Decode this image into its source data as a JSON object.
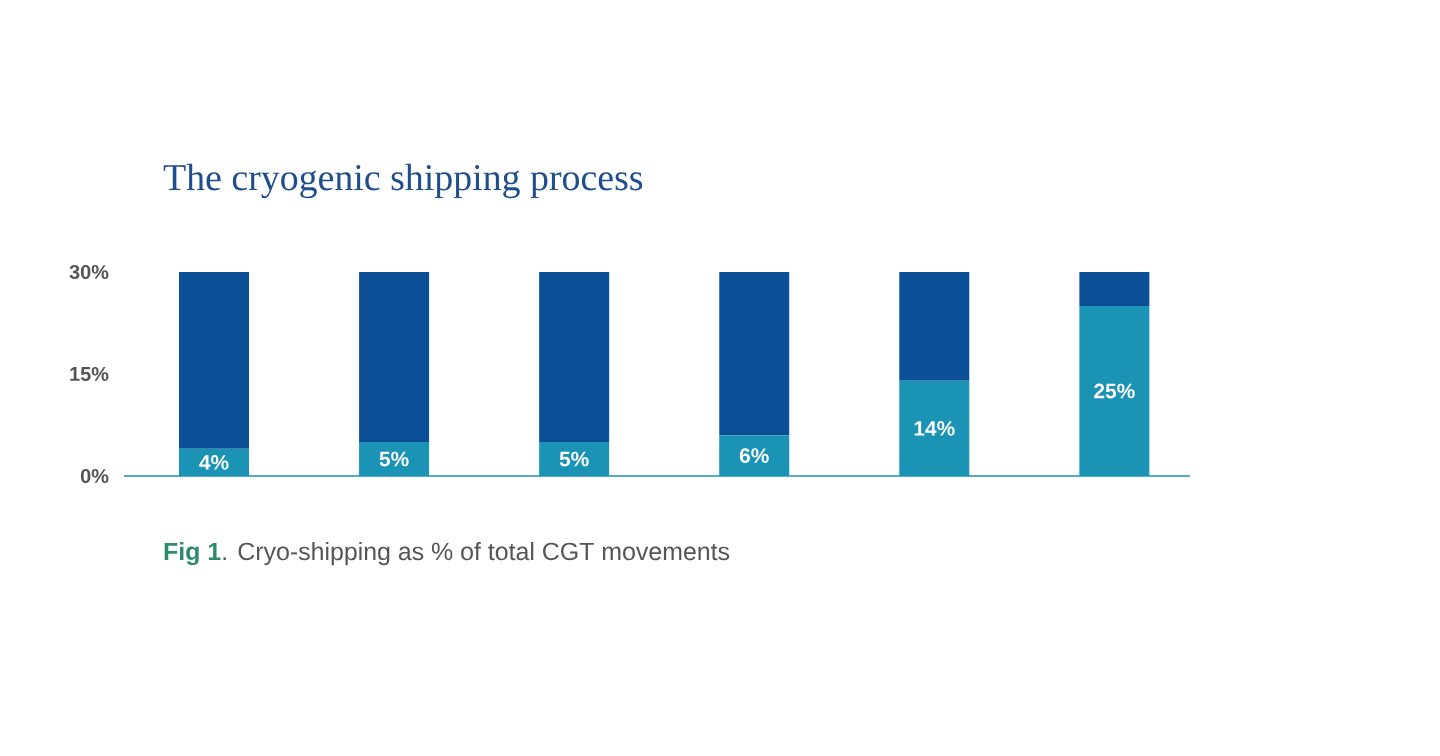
{
  "chart_data": {
    "type": "bar",
    "title": "The cryogenic shipping process",
    "annotations": [
      "**Fig 1**. Cryo-shipping as % of total CGT movements"
    ],
    "categories": [
      null,
      null,
      null,
      null,
      null,
      null
    ],
    "stacked": true,
    "tick_labels": "y",
    "series": [
      {
        "color": "#1b93b5",
        "values": [
          4,
          5,
          5,
          6,
          14,
          25
        ],
        "value_labels": [
          "4%",
          "5%",
          "5%",
          "6%",
          "14%",
          "25%"
        ]
      },
      {
        "color": "#0b4f97",
        "values": [
          26,
          25,
          25,
          24,
          16,
          5
        ]
      }
    ],
    "ylim": [
      0,
      30
    ],
    "yticks": [
      {
        "value": 0,
        "label": "0%"
      },
      {
        "value": 15,
        "label": "15%"
      },
      {
        "value": 30,
        "label": "30%"
      }
    ]
  }
}
